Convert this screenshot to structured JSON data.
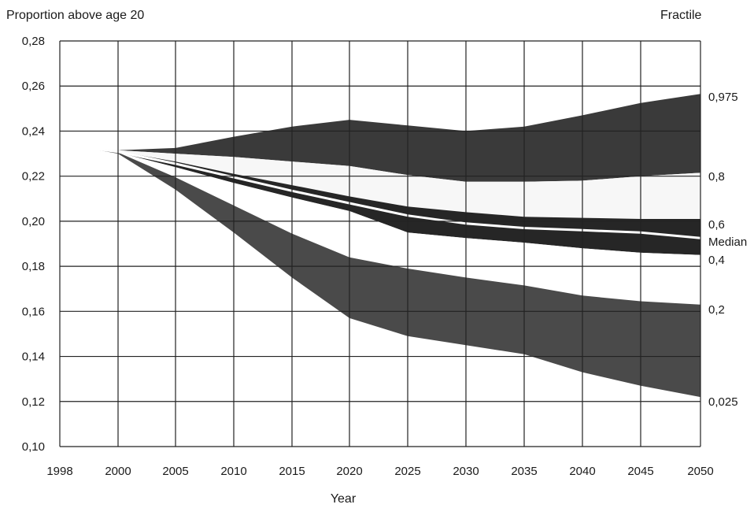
{
  "chart_data": {
    "type": "area",
    "title": "Proportion above age 20",
    "xlabel": "Year",
    "ylabel": "Proportion above age 20",
    "fractile_header": "Fractile",
    "x_tick_labels": [
      "1998",
      "2000",
      "2005",
      "2010",
      "2015",
      "2020",
      "2025",
      "2030",
      "2035",
      "2040",
      "2045",
      "2050"
    ],
    "y_tick_labels": [
      "0,10",
      "0,12",
      "0,14",
      "0,16",
      "0,18",
      "0,20",
      "0,22",
      "0,24",
      "0,26",
      "0,28"
    ],
    "xlim": [
      1998,
      2050
    ],
    "ylim": [
      0.1,
      0.28
    ],
    "grid": true,
    "x": [
      1998,
      2000,
      2005,
      2010,
      2015,
      2020,
      2025,
      2030,
      2035,
      2040,
      2045,
      2050
    ],
    "series": [
      {
        "name": "0,975",
        "values": [
          0.2332,
          0.2315,
          0.2325,
          0.2375,
          0.242,
          0.245,
          0.2425,
          0.24,
          0.242,
          0.247,
          0.2525,
          0.2565
        ]
      },
      {
        "name": "0,8",
        "values": [
          0.2332,
          0.2315,
          0.23,
          0.2285,
          0.2265,
          0.2245,
          0.2205,
          0.2175,
          0.2175,
          0.218,
          0.22,
          0.2215
        ]
      },
      {
        "name": "0,6",
        "values": [
          0.2332,
          0.231,
          0.2265,
          0.221,
          0.216,
          0.211,
          0.2065,
          0.204,
          0.202,
          0.2015,
          0.201,
          0.201
        ]
      },
      {
        "name": "Median",
        "values": [
          0.2332,
          0.2308,
          0.2255,
          0.2195,
          0.2135,
          0.208,
          0.2025,
          0.199,
          0.197,
          0.196,
          0.195,
          0.1925
        ]
      },
      {
        "name": "0,4",
        "values": [
          0.2332,
          0.2305,
          0.224,
          0.217,
          0.2105,
          0.2045,
          0.195,
          0.1925,
          0.1905,
          0.188,
          0.186,
          0.185
        ]
      },
      {
        "name": "0,2",
        "values": [
          0.2332,
          0.2305,
          0.2195,
          0.207,
          0.1945,
          0.184,
          0.179,
          0.175,
          0.1715,
          0.167,
          0.1645,
          0.163
        ]
      },
      {
        "name": "0,025",
        "values": [
          0.2332,
          0.23,
          0.214,
          0.195,
          0.175,
          0.157,
          0.149,
          0.145,
          0.141,
          0.133,
          0.127,
          0.122
        ]
      }
    ],
    "bands": [
      {
        "upper": "0,975",
        "lower": "0,8",
        "fill": "#3a3a3a"
      },
      {
        "upper": "0,8",
        "lower": "0,6",
        "fill": "#f7f7f7"
      },
      {
        "upper": "0,6",
        "lower": "Median",
        "fill": "#262626"
      },
      {
        "upper": "Median",
        "lower": "0,4",
        "fill": "#262626"
      },
      {
        "upper": "0,4",
        "lower": "0,2",
        "fill": "#ffffff"
      },
      {
        "upper": "0,2",
        "lower": "0,025",
        "fill": "#4a4a4a"
      }
    ],
    "colors": {
      "band_dark": "#3a3a3a",
      "band_black": "#262626",
      "gridline": "#222222",
      "median_line": "#ffffff"
    }
  }
}
